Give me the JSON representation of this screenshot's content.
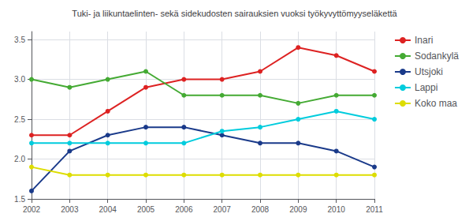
{
  "chart_data": {
    "type": "line",
    "title": "Tuki- ja liikuntaelinten- sekä sidekudosten sairauksien vuoksi työkyvyttömyyseläkettä",
    "x": [
      2002,
      2003,
      2004,
      2005,
      2006,
      2007,
      2008,
      2009,
      2010,
      2011
    ],
    "series": [
      {
        "name": "Inari",
        "color": "#dd2222",
        "values": [
          2.3,
          2.3,
          2.6,
          2.9,
          3.0,
          3.0,
          3.1,
          3.4,
          3.3,
          3.1
        ]
      },
      {
        "name": "Sodankylä",
        "color": "#44aa33",
        "values": [
          3.0,
          2.9,
          3.0,
          3.1,
          2.8,
          2.8,
          2.8,
          2.7,
          2.8,
          2.8
        ]
      },
      {
        "name": "Utsjoki",
        "color": "#1a3a8a",
        "values": [
          1.6,
          2.1,
          2.3,
          2.4,
          2.4,
          2.3,
          2.2,
          2.2,
          2.1,
          1.9
        ]
      },
      {
        "name": "Lappi",
        "color": "#00ccdd",
        "values": [
          2.2,
          2.2,
          2.2,
          2.2,
          2.2,
          2.35,
          2.4,
          2.5,
          2.6,
          2.5
        ]
      },
      {
        "name": "Koko maa",
        "color": "#dddd00",
        "values": [
          1.9,
          1.8,
          1.8,
          1.8,
          1.8,
          1.8,
          1.8,
          1.8,
          1.8,
          1.8
        ]
      }
    ],
    "xlim": [
      2002,
      2011
    ],
    "xticks": [
      2002,
      2003,
      2004,
      2005,
      2006,
      2007,
      2008,
      2009,
      2010,
      2011
    ],
    "ylim": [
      1.5,
      3.6
    ],
    "yticks": [
      1.5,
      {
        "value": 2.0,
        "label": "2.0"
      },
      2.5,
      {
        "value": 3.0,
        "label": "3.0"
      },
      3.5
    ],
    "grid": true,
    "legend": "right",
    "marker": "circle"
  }
}
